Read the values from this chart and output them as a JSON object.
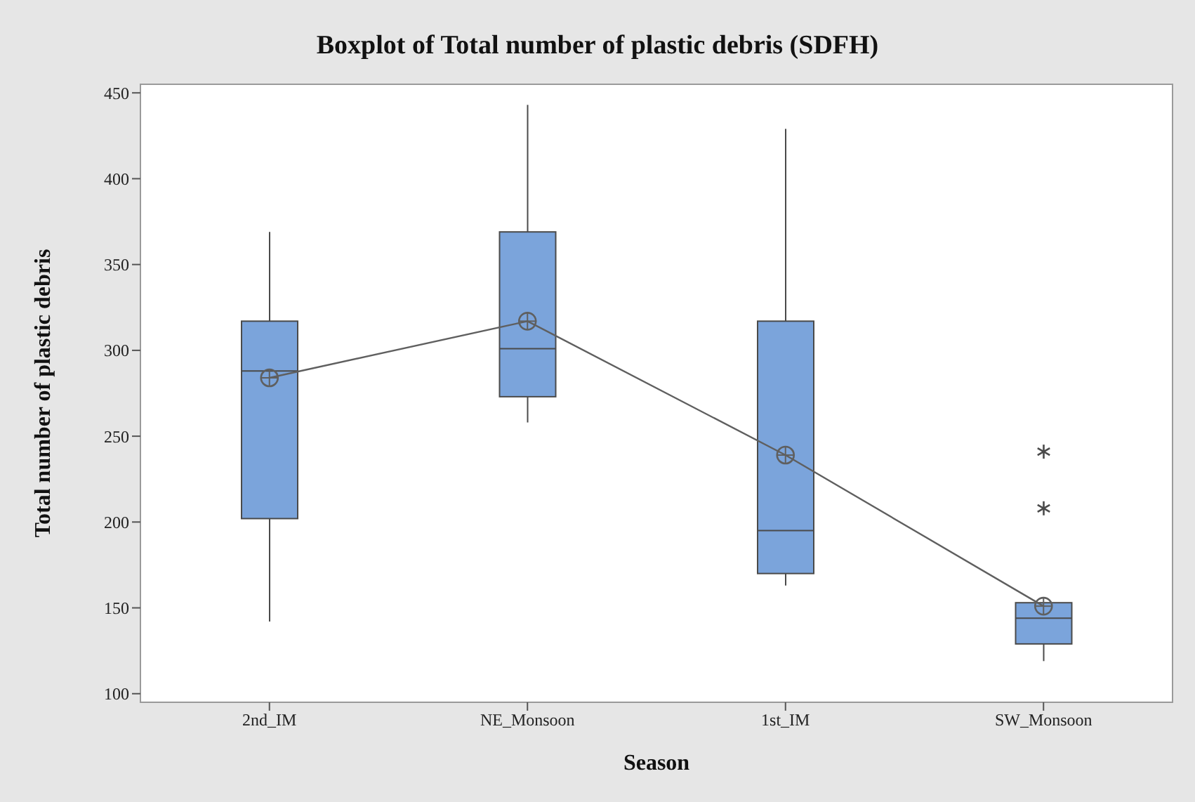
{
  "chart_data": {
    "type": "box",
    "title": "Boxplot of Total number of plastic debris (SDFH)",
    "xlabel": "Season",
    "ylabel": "Total number of plastic debris",
    "categories": [
      "2nd_IM",
      "NE_Monsoon",
      "1st_IM",
      "SW_Monsoon"
    ],
    "ylim": [
      95,
      455
    ],
    "yticks": [
      100,
      150,
      200,
      250,
      300,
      350,
      400,
      450
    ],
    "series": [
      {
        "color": "#7ba4db",
        "boxes": [
          {
            "low": 142,
            "q1": 202,
            "median": 288,
            "q3": 317,
            "high": 369
          },
          {
            "low": 258,
            "q1": 273,
            "median": 301,
            "q3": 369,
            "high": 443
          },
          {
            "low": 163,
            "q1": 170,
            "median": 195,
            "q3": 317,
            "high": 429
          },
          {
            "low": 119,
            "q1": 129,
            "median": 144,
            "q3": 153,
            "high": 153,
            "outliers": [
              241,
              208
            ]
          }
        ]
      },
      {
        "type": "line",
        "color": "#5f5f5f",
        "marker": "circle",
        "values": [
          284,
          317,
          239,
          151
        ]
      }
    ]
  }
}
